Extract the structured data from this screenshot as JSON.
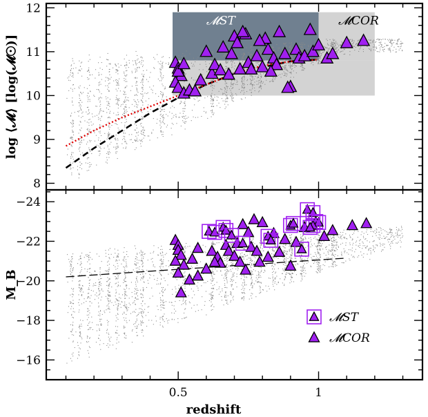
{
  "colors": {
    "background": "#ffffff",
    "scatter": "#8a8a8a",
    "mst_box": "#708090",
    "mcor_box": "#d3d3d3",
    "triangle_fill": "#a020f0",
    "triangle_stroke": "#000000",
    "mst_square": "#a020f0",
    "median_line": "#000000",
    "dotted_line": "#e00000"
  },
  "chart_data": [
    {
      "type": "scatter",
      "panel": "top",
      "title": "",
      "xlabel": "",
      "ylabel": "log ⟨𝓜⟩ [log(𝓜☉)]",
      "xlim": [
        0.03,
        1.37
      ],
      "ylim": [
        7.85,
        12.1
      ],
      "x_ticks": [
        0.5,
        1
      ],
      "y_ticks": [
        8,
        9,
        10,
        11,
        12
      ],
      "y_tick_labels": [
        "8",
        "9",
        "10",
        "11",
        "12"
      ],
      "boxes": [
        {
          "name": "𝓜ST",
          "x": [
            0.48,
            1.0
          ],
          "y": [
            10.8,
            11.9
          ],
          "color": "#708090"
        },
        {
          "name": "𝓜COR",
          "x": [
            1.0,
            1.2
          ],
          "y": [
            10.8,
            11.9
          ],
          "color": "#d3d3d3"
        },
        {
          "name": "",
          "x": [
            0.48,
            1.2
          ],
          "y": [
            10.0,
            10.8
          ],
          "color": "#d3d3d3"
        }
      ],
      "lines": [
        {
          "style": "dashed",
          "color": "#000000",
          "x": [
            0.1,
            0.2,
            0.3,
            0.4,
            0.5,
            0.6,
            0.7,
            0.8,
            0.9,
            1.0
          ],
          "y": [
            8.35,
            8.8,
            9.2,
            9.6,
            9.95,
            10.25,
            10.5,
            10.65,
            10.78,
            10.82
          ]
        },
        {
          "style": "dotted",
          "color": "#e00000",
          "x": [
            0.1,
            0.2,
            0.3,
            0.4,
            0.5,
            0.6,
            0.7,
            0.8,
            0.9,
            1.0
          ],
          "y": [
            8.85,
            9.2,
            9.5,
            9.75,
            10.0,
            10.25,
            10.5,
            10.68,
            10.78,
            10.82
          ]
        }
      ],
      "series": [
        {
          "name": "triangles",
          "x": [
            0.49,
            0.5,
            0.51,
            0.49,
            0.5,
            0.52,
            0.54,
            0.56,
            0.5,
            0.52,
            0.62,
            0.63,
            0.6,
            0.65,
            0.68,
            0.66,
            0.7,
            0.72,
            0.75,
            0.71,
            0.74,
            0.78,
            0.8,
            0.82,
            0.84,
            0.81,
            0.85,
            0.88,
            0.9,
            0.92,
            0.86,
            0.89,
            0.93,
            0.95,
            0.97,
            0.98,
            1.0,
            1.03,
            1.05,
            1.1,
            1.16,
            0.76,
            0.79,
            0.83,
            0.58,
            0.69,
            0.73
          ],
          "y": [
            10.75,
            10.62,
            10.45,
            10.3,
            10.18,
            10.05,
            10.12,
            10.1,
            10.55,
            10.72,
            10.5,
            10.7,
            11.0,
            10.58,
            10.48,
            11.1,
            11.35,
            10.6,
            10.75,
            11.2,
            11.4,
            10.9,
            10.65,
            11.05,
            10.85,
            11.3,
            10.7,
            10.95,
            10.2,
            11.05,
            11.45,
            10.18,
            10.85,
            10.9,
            11.5,
            11.0,
            11.15,
            10.85,
            10.95,
            11.2,
            11.25,
            10.6,
            11.25,
            10.55,
            10.35,
            10.95,
            11.45
          ]
        }
      ],
      "annotations": [
        "𝓜ST",
        "𝓜COR"
      ]
    },
    {
      "type": "scatter",
      "panel": "bottom",
      "title": "",
      "xlabel": "redshift",
      "ylabel": "M_B",
      "xlim": [
        0.03,
        1.37
      ],
      "ylim": [
        -15.0,
        -24.6
      ],
      "x_ticks": [
        0.5,
        1
      ],
      "x_tick_labels": [
        "0.5",
        "1"
      ],
      "y_ticks": [
        -16,
        -18,
        -20,
        -22,
        -24
      ],
      "y_tick_labels": [
        "−16",
        "−18",
        "−20",
        "−22",
        "−24"
      ],
      "lines": [
        {
          "style": "long-dashed",
          "color": "#000000",
          "x": [
            0.1,
            1.1
          ],
          "y": [
            -20.2,
            -21.15
          ]
        }
      ],
      "series": [
        {
          "name": "𝓜ST",
          "marker": "triangle-in-square",
          "x": [
            0.61,
            0.63,
            0.66,
            0.67,
            0.69,
            0.73,
            0.82,
            0.83,
            0.9,
            0.91,
            0.94,
            0.96,
            0.98,
            0.99,
            1.0,
            0.98,
            0.97
          ],
          "y": [
            -22.5,
            -22.45,
            -22.7,
            -22.55,
            -22.3,
            -21.9,
            -22.25,
            -22.05,
            -22.8,
            -22.9,
            -21.6,
            -23.6,
            -23.45,
            -23.0,
            -22.95,
            -22.8,
            -22.7
          ]
        },
        {
          "name": "𝓜COR",
          "marker": "triangle",
          "x": [
            0.49,
            0.5,
            0.5,
            0.51,
            0.49,
            0.52,
            0.5,
            0.54,
            0.55,
            0.51,
            0.57,
            0.6,
            0.62,
            0.64,
            0.65,
            0.67,
            0.68,
            0.7,
            0.71,
            0.72,
            0.73,
            0.75,
            0.76,
            0.77,
            0.78,
            0.8,
            0.82,
            0.84,
            0.86,
            0.88,
            0.9,
            0.92,
            0.95,
            1.02,
            1.05,
            1.12,
            1.17,
            0.57,
            0.74,
            0.79,
            0.63
          ],
          "y": [
            -22.05,
            -21.8,
            -21.55,
            -21.3,
            -21.0,
            -20.8,
            -20.4,
            -20.05,
            -21.1,
            -19.4,
            -21.65,
            -20.6,
            -21.5,
            -21.2,
            -20.9,
            -21.8,
            -21.5,
            -21.25,
            -21.9,
            -20.95,
            -22.85,
            -22.45,
            -21.7,
            -23.1,
            -21.5,
            -22.95,
            -21.2,
            -22.4,
            -21.45,
            -22.1,
            -20.75,
            -21.95,
            -22.7,
            -22.25,
            -22.55,
            -22.8,
            -22.9,
            -20.25,
            -20.55,
            -20.95,
            -20.95
          ]
        }
      ],
      "legend": {
        "position": "bottom-right",
        "entries": [
          "𝓜ST",
          "𝓜COR"
        ]
      }
    }
  ]
}
